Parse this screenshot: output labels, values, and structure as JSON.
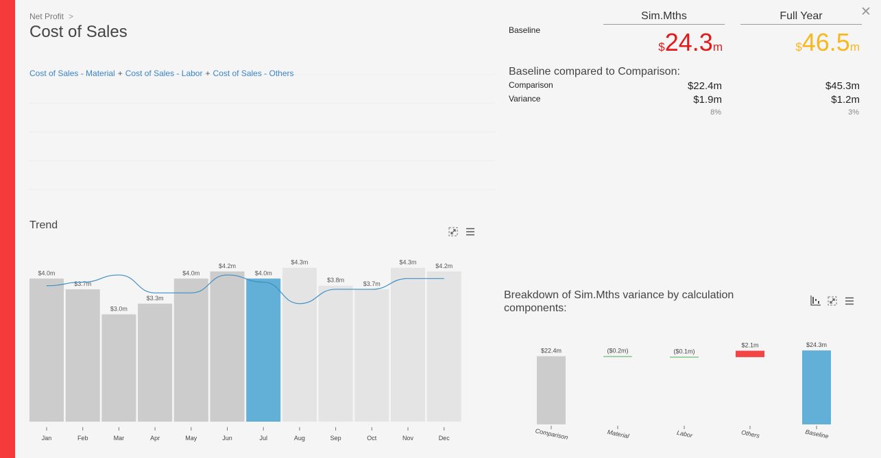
{
  "header": {
    "breadcrumb": "Net Profit",
    "title": "Cost of Sales",
    "formula": [
      "Cost of Sales - Material",
      "Cost of Sales - Labor",
      "Cost of Sales - Others"
    ],
    "formula_sep": "+"
  },
  "summary": {
    "columns": [
      "Sim.Mths",
      "Full Year"
    ],
    "baseline_label": "Baseline",
    "baseline": [
      {
        "currency": "$",
        "value": "24.3",
        "unit": "m",
        "color": "#e5191a"
      },
      {
        "currency": "$",
        "value": "46.5",
        "unit": "m",
        "color": "#f7b81f"
      }
    ],
    "compare_title": "Baseline compared to Comparison:",
    "comparison_label": "Comparison",
    "comparison": [
      "$22.4m",
      "$45.3m"
    ],
    "variance_label": "Variance",
    "variance": [
      "$1.9m",
      "$1.2m"
    ],
    "variance_pct": [
      "8%",
      "3%"
    ]
  },
  "trend": {
    "title": "Trend",
    "chart_data": {
      "type": "bar",
      "categories": [
        "Jan",
        "Feb",
        "Mar",
        "Apr",
        "May",
        "Jun",
        "Jul",
        "Aug",
        "Sep",
        "Oct",
        "Nov",
        "Dec"
      ],
      "values": [
        4.0,
        3.7,
        3.0,
        3.3,
        4.0,
        4.2,
        4.0,
        4.3,
        3.8,
        3.7,
        4.3,
        4.2
      ],
      "labels": [
        "$4.0m",
        "$3.7m",
        "$3.0m",
        "$3.3m",
        "$4.0m",
        "$4.2m",
        "$4.0m",
        "$4.3m",
        "$3.8m",
        "$3.7m",
        "$4.3m",
        "$4.2m"
      ],
      "line_values": [
        3.8,
        3.9,
        4.1,
        3.6,
        3.6,
        4.1,
        3.9,
        3.3,
        3.7,
        3.7,
        4.0,
        4.0
      ],
      "ylim": [
        0,
        4.6
      ],
      "highlight_index": 6,
      "actual_count": 6,
      "colors": {
        "actual": "#cccccc",
        "highlight": "#62afd7",
        "forecast": "#e4e4e4",
        "line": "#3d8fc4"
      }
    }
  },
  "breakdown": {
    "title": "Breakdown of Sim.Mths variance by calculation components:",
    "chart_data": {
      "type": "waterfall",
      "categories": [
        "Comparison",
        "Material",
        "Labor",
        "Others",
        "Baseline"
      ],
      "values": [
        22.4,
        -0.2,
        -0.1,
        2.1,
        24.3
      ],
      "labels": [
        "$22.4m",
        "($0.2m)",
        "($0.1m)",
        "$2.1m",
        "$24.3m"
      ],
      "ylim": [
        0,
        25
      ],
      "colors": {
        "total": "#cccccc",
        "negative": "#4caf50",
        "positive": "#f44545",
        "baseline": "#62afd7"
      }
    }
  }
}
